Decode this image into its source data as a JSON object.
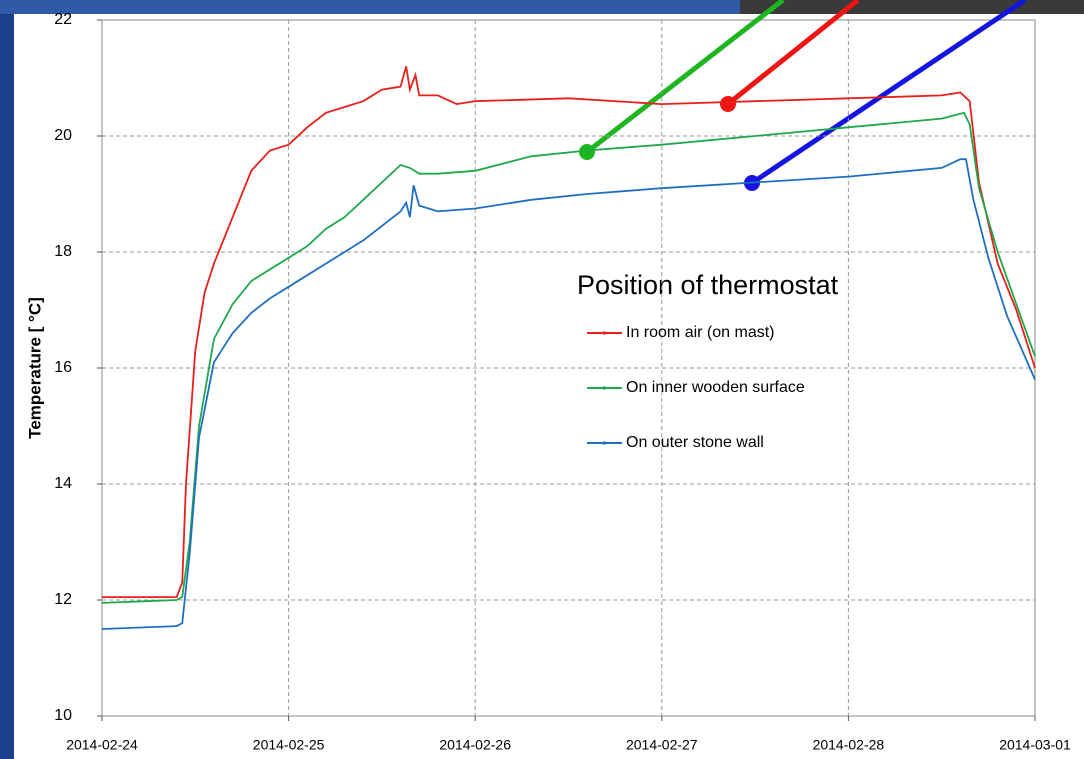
{
  "chart_data": {
    "type": "line",
    "ylabel": "Temperature [ °C]",
    "legend_title": "Position of thermostat",
    "xlim": [
      0,
      5
    ],
    "ylim": [
      10,
      22
    ],
    "xticks": [
      {
        "value": 0,
        "label": "2014-02-24"
      },
      {
        "value": 1,
        "label": "2014-02-25"
      },
      {
        "value": 2,
        "label": "2014-02-26"
      },
      {
        "value": 3,
        "label": "2014-02-27"
      },
      {
        "value": 4,
        "label": "2014-02-28"
      },
      {
        "value": 5,
        "label": "2014-03-01"
      }
    ],
    "yticks": [
      10,
      12,
      14,
      16,
      18,
      20,
      22
    ],
    "grid": true,
    "series": [
      {
        "name": "In room air (on mast)",
        "color": "#e8201a",
        "x": [
          0,
          0.4,
          0.43,
          0.45,
          0.5,
          0.55,
          0.6,
          0.7,
          0.8,
          0.9,
          1.0,
          1.1,
          1.2,
          1.3,
          1.4,
          1.5,
          1.6,
          1.63,
          1.65,
          1.68,
          1.7,
          1.8,
          1.9,
          2.0,
          2.5,
          3.0,
          3.5,
          4.0,
          4.5,
          4.6,
          4.65,
          4.7,
          4.8,
          4.9,
          5.0
        ],
        "values": [
          12.05,
          12.05,
          12.3,
          14,
          16.3,
          17.3,
          17.8,
          18.6,
          19.4,
          19.75,
          19.85,
          20.15,
          20.4,
          20.5,
          20.6,
          20.8,
          20.85,
          21.2,
          20.8,
          21.05,
          20.7,
          20.7,
          20.55,
          20.6,
          20.65,
          20.55,
          20.6,
          20.65,
          20.7,
          20.75,
          20.6,
          19.2,
          17.8,
          17,
          16.0
        ]
      },
      {
        "name": "On inner wooden surface",
        "color": "#1fa84a",
        "x": [
          0,
          0.4,
          0.43,
          0.47,
          0.52,
          0.6,
          0.7,
          0.8,
          0.9,
          1.0,
          1.1,
          1.2,
          1.3,
          1.4,
          1.5,
          1.6,
          1.65,
          1.7,
          1.8,
          2.0,
          2.3,
          2.6,
          3.0,
          3.5,
          4.0,
          4.5,
          4.62,
          4.65,
          4.7,
          4.8,
          4.9,
          5.0
        ],
        "values": [
          11.95,
          12,
          12.05,
          13,
          15,
          16.5,
          17.1,
          17.5,
          17.7,
          17.9,
          18.1,
          18.4,
          18.6,
          18.9,
          19.2,
          19.5,
          19.45,
          19.35,
          19.35,
          19.4,
          19.65,
          19.75,
          19.85,
          20.0,
          20.15,
          20.3,
          20.4,
          20.2,
          19.1,
          18.0,
          17.1,
          16.2
        ]
      },
      {
        "name": "On outer stone wall",
        "color": "#1f6fc0",
        "x": [
          0,
          0.4,
          0.43,
          0.47,
          0.52,
          0.6,
          0.7,
          0.8,
          0.9,
          1.0,
          1.1,
          1.2,
          1.3,
          1.4,
          1.5,
          1.6,
          1.63,
          1.65,
          1.67,
          1.7,
          1.8,
          2.0,
          2.3,
          2.6,
          3.0,
          3.5,
          4.0,
          4.5,
          4.6,
          4.63,
          4.67,
          4.75,
          4.85,
          5.0
        ],
        "values": [
          11.5,
          11.55,
          11.6,
          12.8,
          14.8,
          16.1,
          16.6,
          16.95,
          17.2,
          17.4,
          17.6,
          17.8,
          18.0,
          18.2,
          18.45,
          18.7,
          18.85,
          18.6,
          19.15,
          18.8,
          18.7,
          18.75,
          18.9,
          19.0,
          19.1,
          19.2,
          19.3,
          19.45,
          19.6,
          19.6,
          18.9,
          17.9,
          16.9,
          15.8
        ]
      }
    ]
  }
}
